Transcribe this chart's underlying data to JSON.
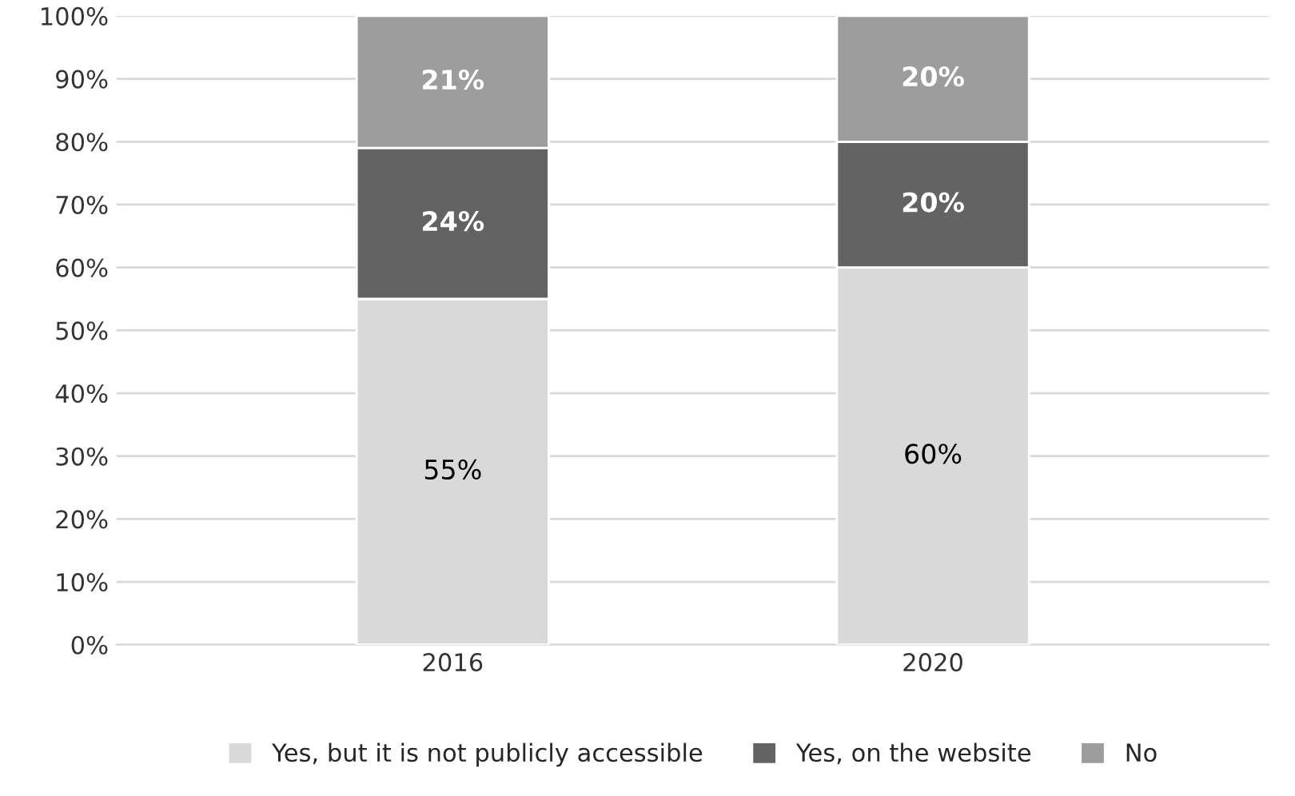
{
  "chart_data": {
    "type": "bar",
    "stacked": true,
    "categories": [
      "2016",
      "2020"
    ],
    "series": [
      {
        "name": "Yes, but it is not publicly accessible",
        "color": "#d9d9d9",
        "values": [
          55,
          60
        ],
        "value_labels": [
          "55%",
          "60%"
        ]
      },
      {
        "name": "Yes, on the website",
        "color": "#636363",
        "values": [
          24,
          20
        ],
        "value_labels": [
          "24%",
          "20%"
        ]
      },
      {
        "name": "No",
        "color": "#9d9d9d",
        "values": [
          21,
          20
        ],
        "value_labels": [
          "21%",
          "20%"
        ]
      }
    ],
    "ylim": [
      0,
      100
    ],
    "yticks": [
      {
        "value": 0,
        "label": "0%"
      },
      {
        "value": 10,
        "label": "10%"
      },
      {
        "value": 20,
        "label": "20%"
      },
      {
        "value": 30,
        "label": "30%"
      },
      {
        "value": 40,
        "label": "40%"
      },
      {
        "value": 50,
        "label": "50%"
      },
      {
        "value": 60,
        "label": "60%"
      },
      {
        "value": 70,
        "label": "70%"
      },
      {
        "value": 80,
        "label": "80%"
      },
      {
        "value": 90,
        "label": "90%"
      },
      {
        "value": 100,
        "label": "100%"
      }
    ],
    "grid": "y",
    "legend": "bottom"
  }
}
